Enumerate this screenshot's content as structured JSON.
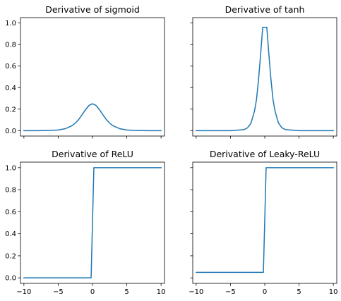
{
  "colors": {
    "series": "#1f77b4",
    "axes": "#000000",
    "background": "#ffffff"
  },
  "shared": {
    "xlim": [
      -10.5,
      10.5
    ],
    "ylim": [
      -0.05,
      1.05
    ],
    "xticks": [
      -10,
      -5,
      0,
      5,
      10
    ],
    "xtick_labels": [
      "−10",
      "−5",
      "0",
      "5",
      "10"
    ],
    "yticks": [
      0.0,
      0.2,
      0.4,
      0.6,
      0.8,
      1.0
    ],
    "ytick_labels": [
      "0.0",
      "0.2",
      "0.4",
      "0.6",
      "0.8",
      "1.0"
    ]
  },
  "chart_data": [
    {
      "type": "line",
      "title": "Derivative of sigmoid",
      "xlabel": "",
      "ylabel": "",
      "xlim": [
        -10.5,
        10.5
      ],
      "ylim": [
        -0.05,
        1.05
      ],
      "x": [
        -10,
        -8,
        -6,
        -5,
        -4,
        -3,
        -2.5,
        -2,
        -1.5,
        -1,
        -0.5,
        0,
        0.5,
        1,
        1.5,
        2,
        2.5,
        3,
        4,
        5,
        6,
        8,
        10
      ],
      "y": [
        0.0,
        0.0003,
        0.0025,
        0.0066,
        0.0177,
        0.0452,
        0.0701,
        0.105,
        0.1491,
        0.1966,
        0.235,
        0.25,
        0.235,
        0.1966,
        0.1491,
        0.105,
        0.0701,
        0.0452,
        0.0177,
        0.0066,
        0.0025,
        0.0003,
        0.0
      ],
      "xtick_labels_visible": false,
      "ytick_labels_visible": true
    },
    {
      "type": "line",
      "title": "Derivative of tanh",
      "xlabel": "",
      "ylabel": "",
      "xlim": [
        -10.5,
        10.5
      ],
      "ylim": [
        -0.05,
        1.05
      ],
      "x": [
        -10,
        -5,
        -3,
        -2.5,
        -2,
        -1.5,
        -1.2,
        -0.9,
        -0.6,
        -0.3,
        0,
        0.3,
        0.6,
        0.9,
        1.2,
        1.5,
        2,
        2.5,
        3,
        5,
        10
      ],
      "y": [
        0.0,
        0.0002,
        0.01,
        0.027,
        0.071,
        0.181,
        0.29,
        0.48,
        0.71,
        0.96,
        0.96,
        0.96,
        0.71,
        0.48,
        0.29,
        0.181,
        0.071,
        0.027,
        0.01,
        0.0002,
        0.0
      ],
      "xtick_labels_visible": false,
      "ytick_labels_visible": false
    },
    {
      "type": "line",
      "title": "Derivative of ReLU",
      "xlabel": "",
      "ylabel": "",
      "xlim": [
        -10.5,
        10.5
      ],
      "ylim": [
        -0.05,
        1.05
      ],
      "x": [
        -10,
        -0.2,
        0.2,
        10
      ],
      "y": [
        0.0,
        0.0,
        1.0,
        1.0
      ],
      "xtick_labels_visible": true,
      "ytick_labels_visible": true
    },
    {
      "type": "line",
      "title": "Derivative of Leaky-ReLU",
      "xlabel": "",
      "ylabel": "",
      "xlim": [
        -10.5,
        10.5
      ],
      "ylim": [
        -0.05,
        1.05
      ],
      "x": [
        -10,
        -0.2,
        0.2,
        10
      ],
      "y": [
        0.05,
        0.05,
        1.0,
        1.0
      ],
      "xtick_labels_visible": true,
      "ytick_labels_visible": false
    }
  ]
}
